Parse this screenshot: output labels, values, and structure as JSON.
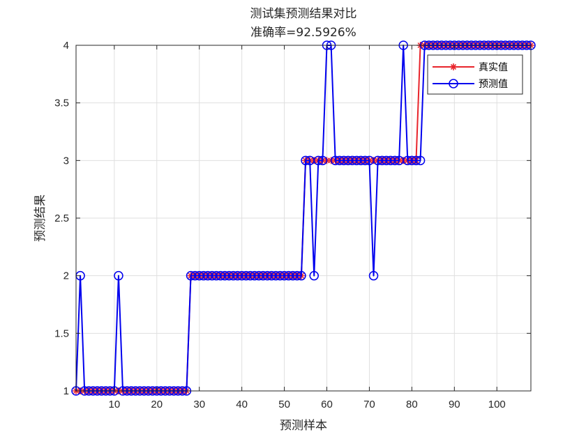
{
  "chart_data": {
    "type": "line",
    "title": "测试集预测结果对比",
    "subtitle": "准确率=92.5926%",
    "xlabel": "预测样本",
    "ylabel": "预测结果",
    "xlim": [
      1,
      108
    ],
    "ylim": [
      1,
      4
    ],
    "xticks": [
      10,
      20,
      30,
      40,
      50,
      60,
      70,
      80,
      90,
      100
    ],
    "yticks": [
      1,
      1.5,
      2,
      2.5,
      3,
      3.5,
      4
    ],
    "grid": true,
    "legend_position": "top-right",
    "series": [
      {
        "name": "真实值",
        "color": "#e8242b",
        "marker": "asterisk",
        "values": [
          1,
          1,
          1,
          1,
          1,
          1,
          1,
          1,
          1,
          1,
          1,
          1,
          1,
          1,
          1,
          1,
          1,
          1,
          1,
          1,
          1,
          1,
          1,
          1,
          1,
          1,
          1,
          2,
          2,
          2,
          2,
          2,
          2,
          2,
          2,
          2,
          2,
          2,
          2,
          2,
          2,
          2,
          2,
          2,
          2,
          2,
          2,
          2,
          2,
          2,
          2,
          2,
          2,
          2,
          3,
          3,
          3,
          3,
          3,
          3,
          3,
          3,
          3,
          3,
          3,
          3,
          3,
          3,
          3,
          3,
          3,
          3,
          3,
          3,
          3,
          3,
          3,
          3,
          3,
          3,
          3,
          4,
          4,
          4,
          4,
          4,
          4,
          4,
          4,
          4,
          4,
          4,
          4,
          4,
          4,
          4,
          4,
          4,
          4,
          4,
          4,
          4,
          4,
          4,
          4,
          4,
          4,
          4
        ]
      },
      {
        "name": "预测值",
        "color": "#0000ee",
        "marker": "circle",
        "values": [
          1,
          2,
          1,
          1,
          1,
          1,
          1,
          1,
          1,
          1,
          2,
          1,
          1,
          1,
          1,
          1,
          1,
          1,
          1,
          1,
          1,
          1,
          1,
          1,
          1,
          1,
          1,
          2,
          2,
          2,
          2,
          2,
          2,
          2,
          2,
          2,
          2,
          2,
          2,
          2,
          2,
          2,
          2,
          2,
          2,
          2,
          2,
          2,
          2,
          2,
          2,
          2,
          2,
          2,
          3,
          3,
          2,
          3,
          3,
          4,
          4,
          3,
          3,
          3,
          3,
          3,
          3,
          3,
          3,
          3,
          2,
          3,
          3,
          3,
          3,
          3,
          3,
          4,
          3,
          3,
          3,
          3,
          4,
          4,
          4,
          4,
          4,
          4,
          4,
          4,
          4,
          4,
          4,
          4,
          4,
          4,
          4,
          4,
          4,
          4,
          4,
          4,
          4,
          4,
          4,
          4,
          4,
          4
        ]
      }
    ]
  }
}
